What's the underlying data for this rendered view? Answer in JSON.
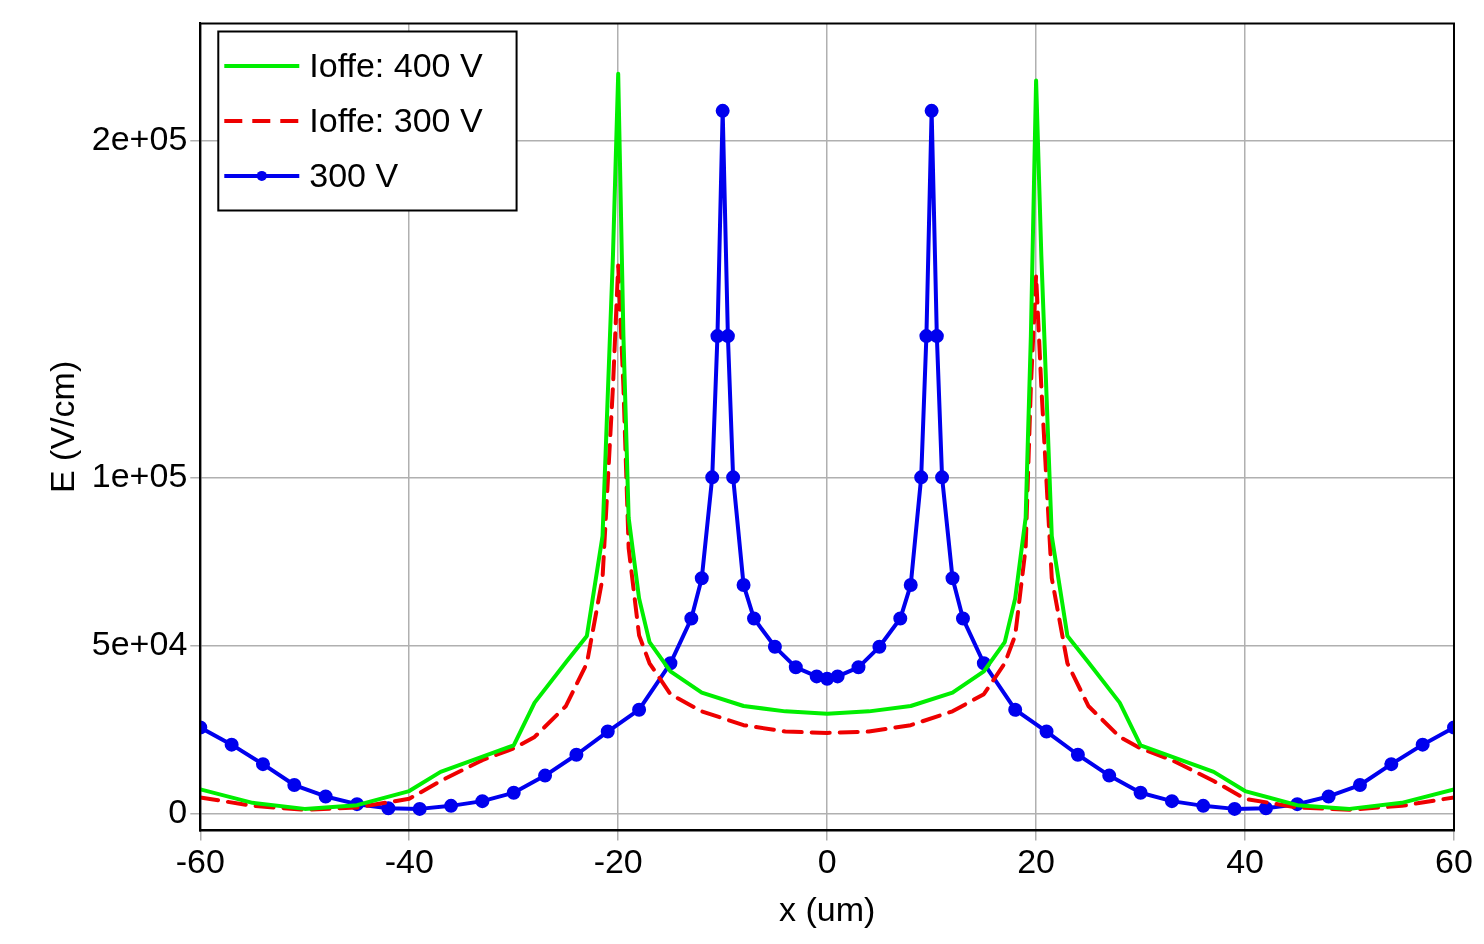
{
  "chart_data": {
    "type": "line",
    "xlabel": "x (um)",
    "ylabel": "E (V/cm)",
    "xlim": [
      -60,
      60
    ],
    "xticks": [
      -60,
      -40,
      -20,
      0,
      20,
      40,
      60
    ],
    "ylim": [
      -5000,
      235000
    ],
    "yticks": [
      0,
      {
        "value": 50000,
        "label": "5e+04"
      },
      {
        "value": 100000,
        "label": "1e+05"
      },
      {
        "value": 200000,
        "label": "2e+05"
      }
    ],
    "grid": true,
    "legend": "top left",
    "series": [
      {
        "name": "Ioffe: 400 V",
        "color": "#00ee00",
        "line_style": "solid",
        "marker": "none",
        "x": [
          -60,
          -55,
          -50,
          -45,
          -40,
          -37,
          -30,
          -28,
          -25,
          -23,
          -21.5,
          -20.5,
          -20,
          -19.5,
          -19,
          -18,
          -17,
          -15,
          -12,
          -8,
          -4,
          0,
          4,
          8,
          12,
          15,
          17,
          18,
          19,
          19.5,
          20,
          20.5,
          21.5,
          23,
          25,
          28,
          30,
          37,
          40,
          45,
          50,
          55,
          60
        ],
        "values": [
          7200,
          3200,
          1400,
          2500,
          6700,
          12400,
          20300,
          33000,
          45000,
          52800,
          82500,
          166000,
          220000,
          142000,
          88000,
          64000,
          51000,
          42300,
          36000,
          32000,
          30400,
          29700,
          30400,
          32000,
          36000,
          42300,
          51000,
          64000,
          88000,
          142000,
          218000,
          166000,
          82500,
          52800,
          45000,
          33000,
          20300,
          12400,
          6700,
          2500,
          1400,
          3200,
          7200
        ]
      },
      {
        "name": "Ioffe: 300 V",
        "color": "#ee0000",
        "line_style": "dashed",
        "marker": "none",
        "x": [
          -60,
          -55,
          -50,
          -45,
          -40,
          -37,
          -33,
          -30,
          -28,
          -25,
          -23,
          -21.5,
          -20.5,
          -20,
          -19.5,
          -19,
          -18,
          -17,
          -15,
          -12,
          -8,
          -4,
          0,
          4,
          8,
          12,
          15,
          17,
          18,
          19,
          19.5,
          20,
          20.5,
          21.5,
          23,
          25,
          28,
          30,
          33,
          37,
          40,
          45,
          50,
          55,
          60
        ],
        "values": [
          4800,
          2300,
          1150,
          1800,
          4400,
          9700,
          15900,
          19400,
          22800,
          32000,
          44700,
          70000,
          127000,
          163000,
          127000,
          79000,
          53000,
          44700,
          35500,
          30400,
          26300,
          24400,
          24000,
          24400,
          26300,
          30400,
          35500,
          44700,
          53000,
          79000,
          127000,
          160000,
          127000,
          70000,
          44700,
          32000,
          22800,
          19400,
          15900,
          9700,
          4400,
          1800,
          1150,
          2300,
          4800
        ]
      },
      {
        "name": "300 V",
        "color": "#0000ee",
        "line_style": "solid",
        "marker": "circle",
        "x": [
          -60,
          -57,
          -54,
          -51,
          -48,
          -45,
          -42,
          -39,
          -36,
          -33,
          -30,
          -27,
          -24,
          -21,
          -18,
          -15,
          -13,
          -12,
          -11,
          -10.5,
          -10,
          -9.5,
          -9,
          -8,
          -7,
          -5,
          -3,
          -1,
          0,
          1,
          3,
          5,
          7,
          8,
          9,
          9.5,
          10,
          10.5,
          11,
          12,
          13,
          15,
          18,
          21,
          24,
          27,
          30,
          33,
          36,
          39,
          42,
          45,
          48,
          51,
          54,
          57,
          60
        ],
        "values": [
          25600,
          20500,
          14700,
          8500,
          5100,
          2800,
          1600,
          1400,
          2300,
          3700,
          6200,
          11300,
          17500,
          24400,
          30900,
          44700,
          58000,
          70000,
          100000,
          142000,
          209000,
          142000,
          100000,
          68000,
          58000,
          49600,
          43500,
          40800,
          40100,
          40800,
          43500,
          49600,
          58000,
          68000,
          100000,
          142000,
          209000,
          142000,
          100000,
          70000,
          58000,
          44700,
          30900,
          24400,
          17500,
          11300,
          6200,
          3700,
          2300,
          1400,
          1600,
          2800,
          5100,
          8500,
          14700,
          20500,
          25600
        ]
      }
    ]
  }
}
